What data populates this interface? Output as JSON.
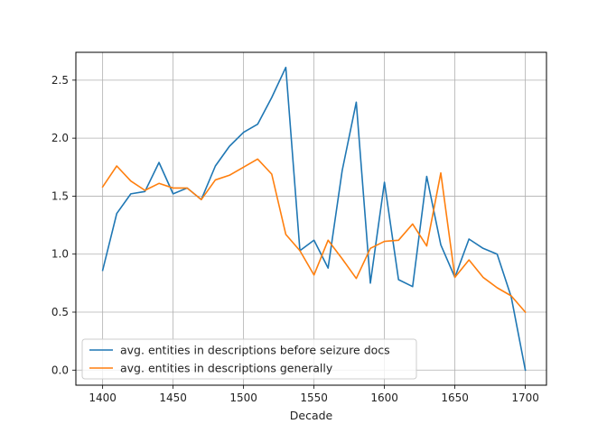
{
  "chart_data": {
    "type": "line",
    "title": "",
    "xlabel": "Decade",
    "ylabel": "",
    "xlim": [
      1381,
      1715
    ],
    "ylim": [
      -0.13,
      2.74
    ],
    "xticks": [
      1400,
      1450,
      1500,
      1550,
      1600,
      1650,
      1700
    ],
    "yticks": [
      0.0,
      0.5,
      1.0,
      1.5,
      2.0,
      2.5
    ],
    "xtick_labels": [
      "1400",
      "1450",
      "1500",
      "1550",
      "1600",
      "1650",
      "1700"
    ],
    "ytick_labels": [
      "0.0",
      "0.5",
      "1.0",
      "1.5",
      "2.0",
      "2.5"
    ],
    "grid": true,
    "legend_position": "lower-left",
    "x": [
      1400,
      1410,
      1420,
      1430,
      1440,
      1450,
      1460,
      1470,
      1480,
      1490,
      1500,
      1510,
      1520,
      1530,
      1540,
      1550,
      1560,
      1570,
      1580,
      1590,
      1600,
      1610,
      1620,
      1630,
      1640,
      1650,
      1660,
      1670,
      1680,
      1690,
      1700
    ],
    "series": [
      {
        "name": "avg. entities in descriptions before seizure docs",
        "color": "#1f77b4",
        "values": [
          0.86,
          1.35,
          1.52,
          1.54,
          1.79,
          1.52,
          1.57,
          1.47,
          1.76,
          1.93,
          2.05,
          2.12,
          2.35,
          2.61,
          1.03,
          1.12,
          0.88,
          1.72,
          2.31,
          0.75,
          1.62,
          0.78,
          0.72,
          1.67,
          1.08,
          0.8,
          1.13,
          1.05,
          1.0,
          0.63,
          0.0
        ]
      },
      {
        "name": "avg. entities in descriptions generally",
        "color": "#ff7f0e",
        "values": [
          1.58,
          1.76,
          1.63,
          1.55,
          1.61,
          1.57,
          1.57,
          1.47,
          1.64,
          1.68,
          1.75,
          1.82,
          1.69,
          1.17,
          1.03,
          0.82,
          1.12,
          0.96,
          0.79,
          1.05,
          1.11,
          1.12,
          1.26,
          1.07,
          1.7,
          0.8,
          0.95,
          0.8,
          0.71,
          0.64,
          0.5
        ]
      }
    ]
  }
}
